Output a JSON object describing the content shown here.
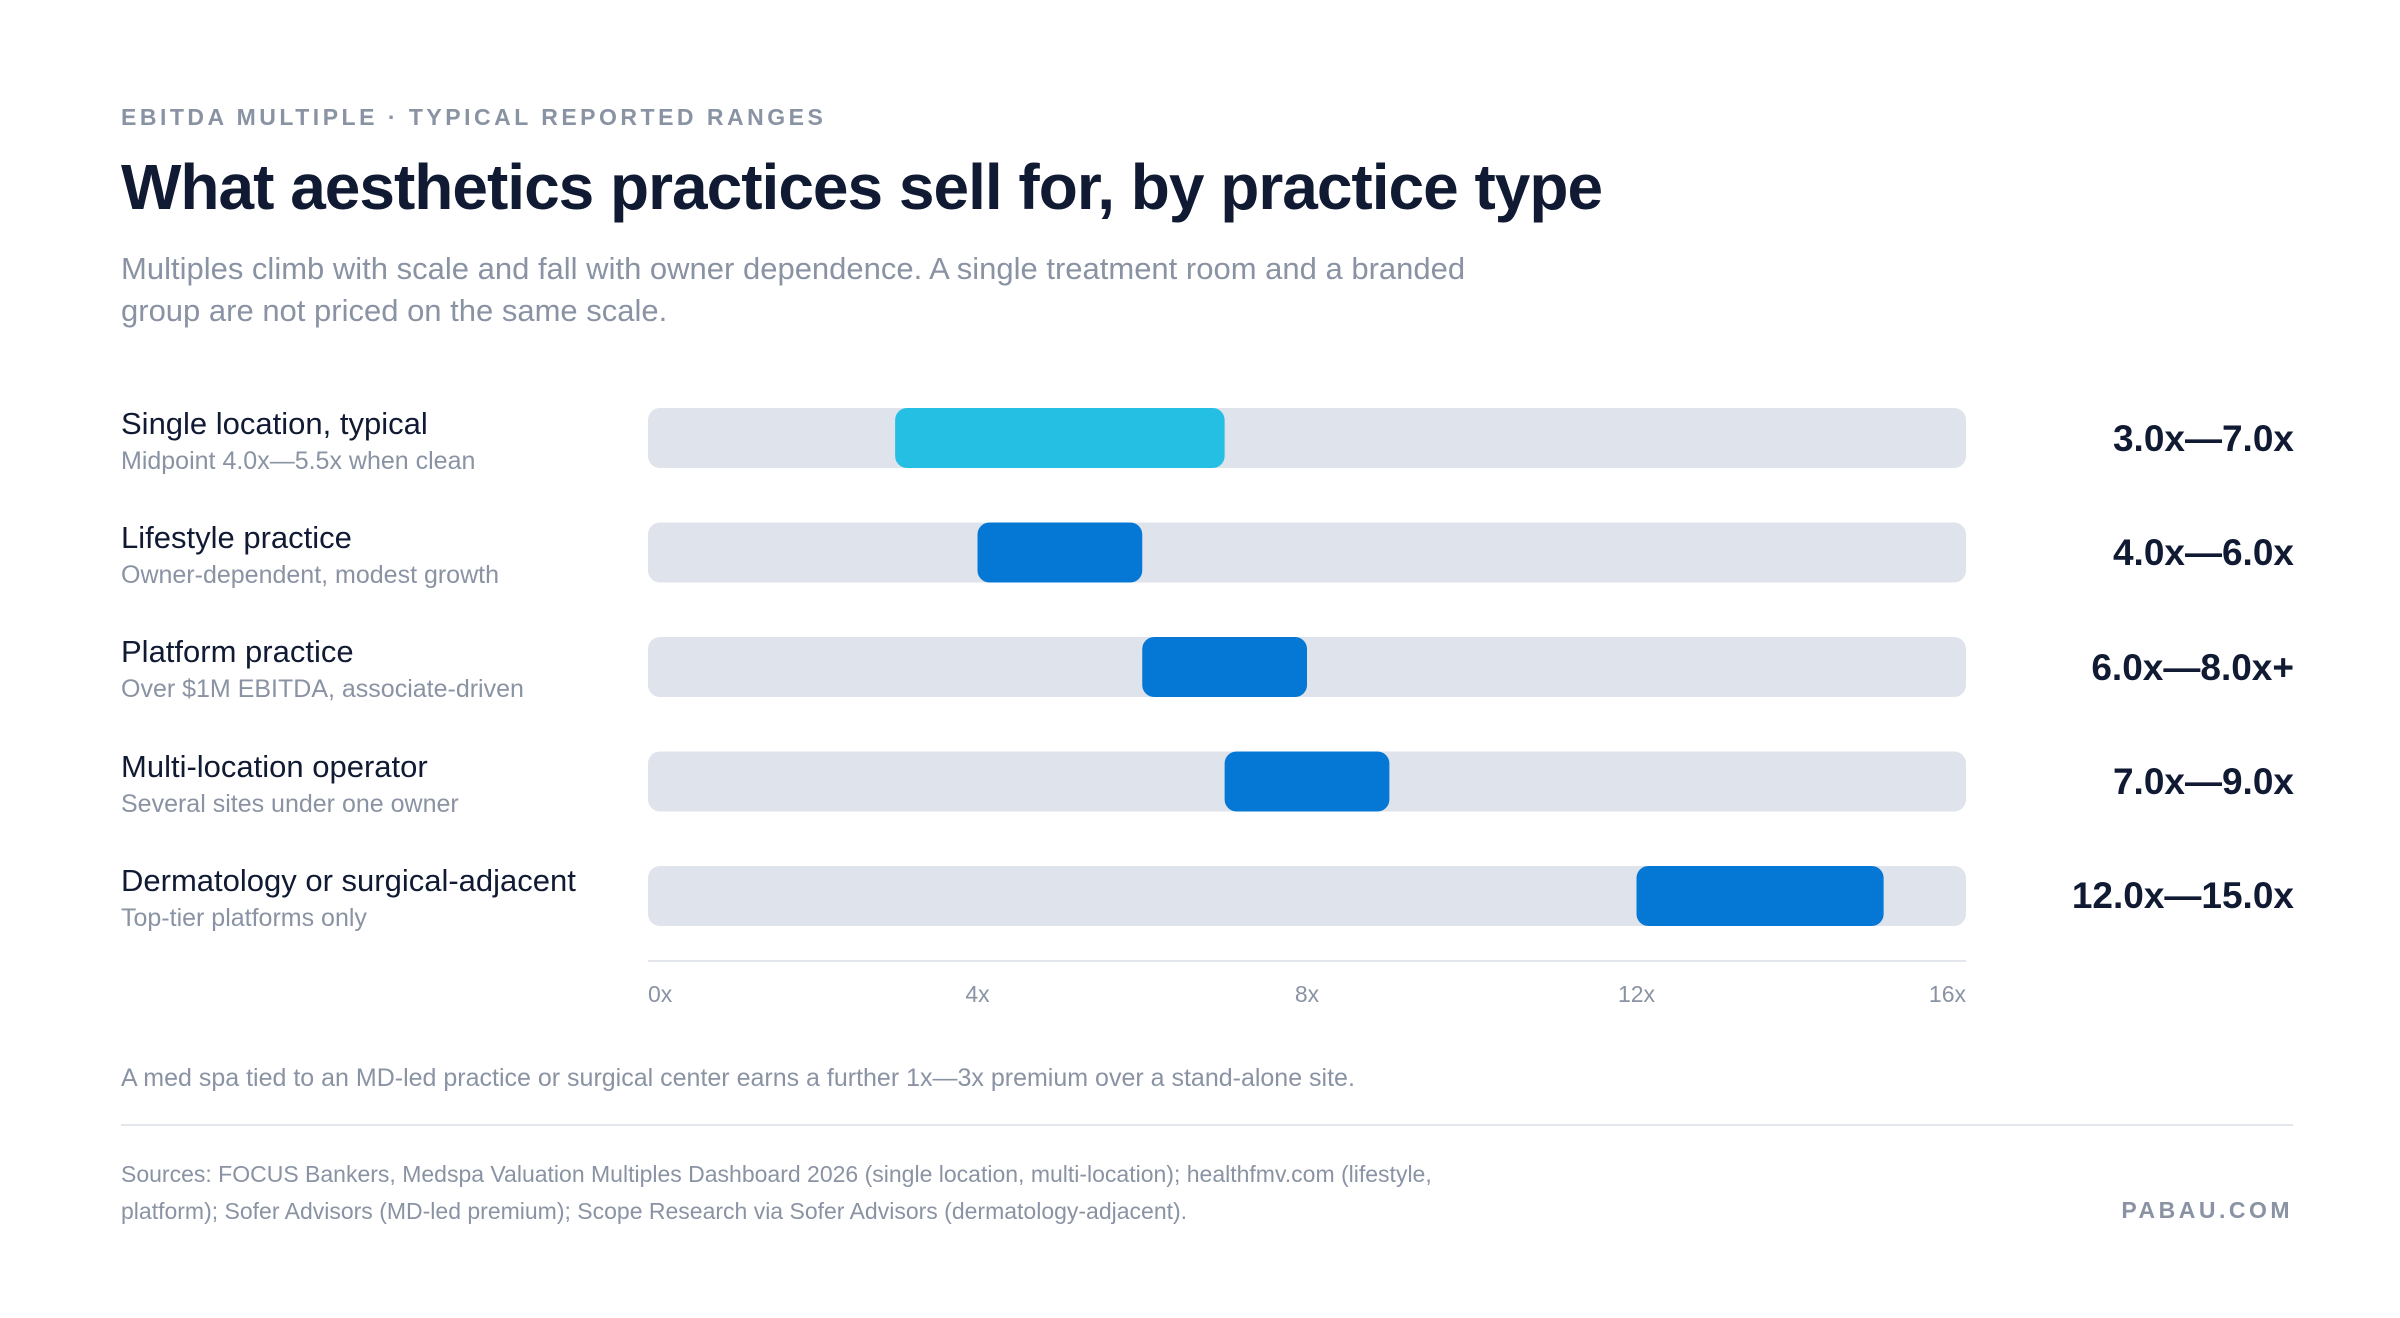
{
  "header": {
    "eyebrow": "EBITDA MULTIPLE · TYPICAL REPORTED RANGES",
    "title": "What aesthetics practices sell for, by practice type",
    "subtitle": "Multiples climb with scale and fall with owner dependence. A single treatment room and a branded group are not priced on the same scale."
  },
  "chart_data": {
    "type": "bar",
    "orientation": "horizontal-range",
    "title": "What aesthetics practices sell for, by practice type",
    "xlabel": "",
    "ylabel": "",
    "xlim": [
      0,
      16
    ],
    "xticks": [
      0,
      4,
      8,
      12,
      16
    ],
    "xtick_labels": [
      "0x",
      "4x",
      "8x",
      "12x",
      "16x"
    ],
    "grid": false,
    "categories": [
      "Single location, typical",
      "Lifestyle practice",
      "Platform practice",
      "Multi-location operator",
      "Dermatology or surgical-adjacent"
    ],
    "rows": [
      {
        "label": "Single location, typical",
        "sublabel": "Midpoint 4.0x—5.5x when clean",
        "low": 3.0,
        "high": 7.0,
        "range_label": "3.0x—7.0x",
        "color": "#25bfe3"
      },
      {
        "label": "Lifestyle practice",
        "sublabel": "Owner-dependent, modest growth",
        "low": 4.0,
        "high": 6.0,
        "range_label": "4.0x—6.0x",
        "color": "#0478d4"
      },
      {
        "label": "Platform practice",
        "sublabel": "Over $1M EBITDA, associate-driven",
        "low": 6.0,
        "high": 8.0,
        "range_label": "6.0x—8.0x+",
        "color": "#0478d4"
      },
      {
        "label": "Multi-location operator",
        "sublabel": "Several sites under one owner",
        "low": 7.0,
        "high": 9.0,
        "range_label": "7.0x—9.0x",
        "color": "#0478d4"
      },
      {
        "label": "Dermatology or surgical-adjacent",
        "sublabel": "Top-tier platforms only",
        "low": 12.0,
        "high": 15.0,
        "range_label": "12.0x—15.0x",
        "color": "#0478d4"
      }
    ],
    "track_color": "#dfe3ec"
  },
  "footnote": "A med spa tied to an MD-led practice or surgical center earns a further 1x—3x premium over a stand-alone site.",
  "footer": {
    "sources": "Sources: FOCUS Bankers, Medspa Valuation Multiples Dashboard 2026 (single location, multi-location); healthfmv.com (lifestyle, platform); Sofer Advisors (MD-led premium); Scope Research via Sofer Advisors (dermatology-adjacent).",
    "brand": "PABAU.COM"
  }
}
